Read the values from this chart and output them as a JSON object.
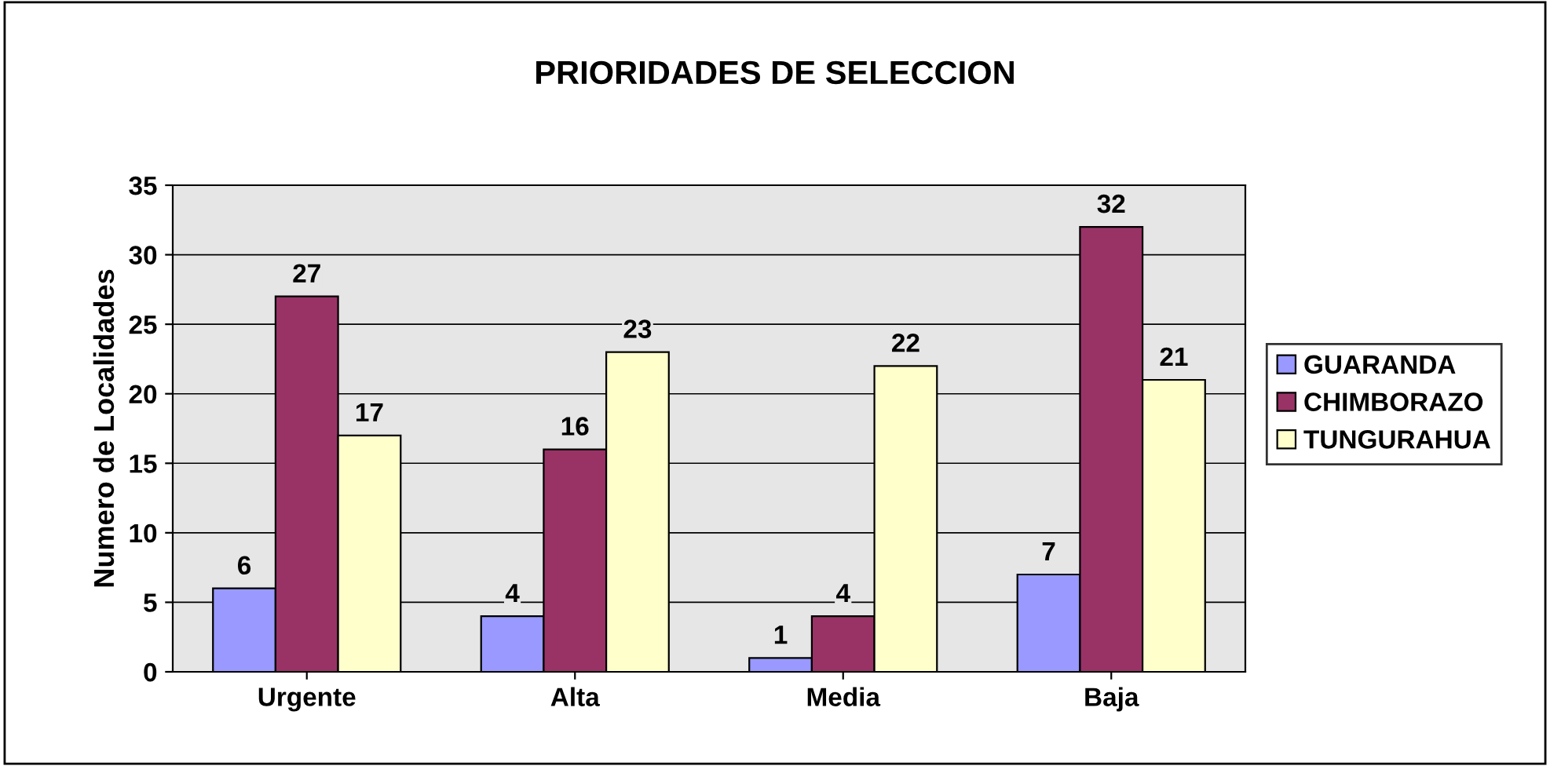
{
  "chart_data": {
    "type": "bar",
    "title": "PRIORIDADES DE SELECCION",
    "ylabel": "Numero de Localidades",
    "categories": [
      "Urgente",
      "Alta",
      "Media",
      "Baja"
    ],
    "series": [
      {
        "name": "GUARANDA",
        "color": "#9999ff",
        "values": [
          6,
          4,
          1,
          7
        ]
      },
      {
        "name": "CHIMBORAZO",
        "color": "#993366",
        "values": [
          27,
          16,
          4,
          32
        ]
      },
      {
        "name": "TUNGURAHUA",
        "color": "#ffffcc",
        "values": [
          17,
          23,
          22,
          21
        ]
      }
    ],
    "ylim": [
      0,
      35
    ],
    "yticks": [
      0,
      5,
      10,
      15,
      20,
      25,
      30,
      35
    ],
    "grid": "y",
    "legend": "right",
    "data_labels": true
  }
}
